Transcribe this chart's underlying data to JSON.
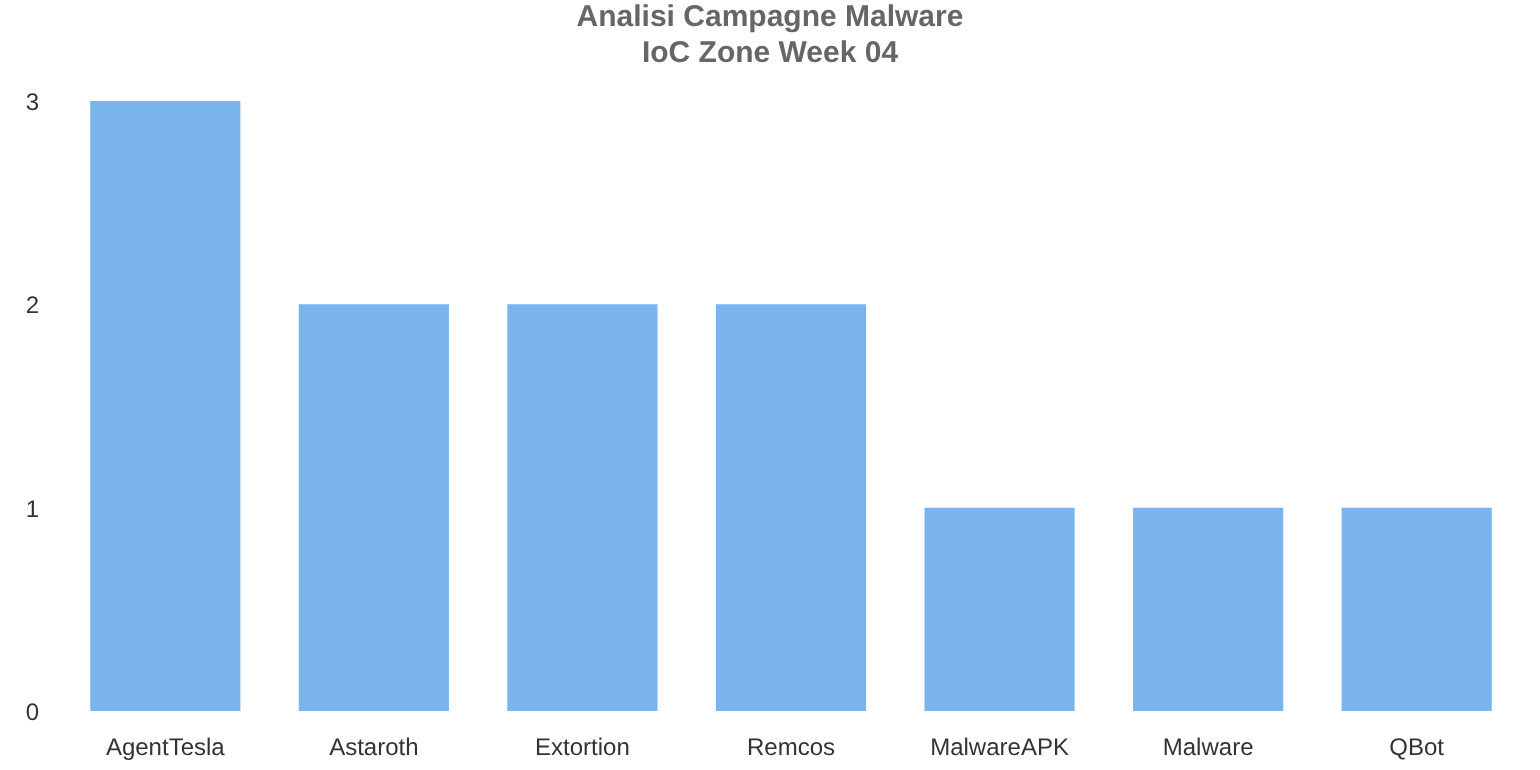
{
  "chart_data": {
    "type": "bar",
    "title": "Analisi Campagne Malware\nIoC Zone Week 04",
    "categories": [
      "AgentTesla",
      "Astaroth",
      "Extortion",
      "Remcos",
      "MalwareAPK",
      "Malware",
      "QBot"
    ],
    "values": [
      3,
      2,
      2,
      2,
      1,
      1,
      1
    ],
    "color": "#7ab4ec",
    "ylim": [
      0,
      3
    ],
    "yticks": [
      0,
      1,
      2,
      3
    ],
    "grid": false
  }
}
